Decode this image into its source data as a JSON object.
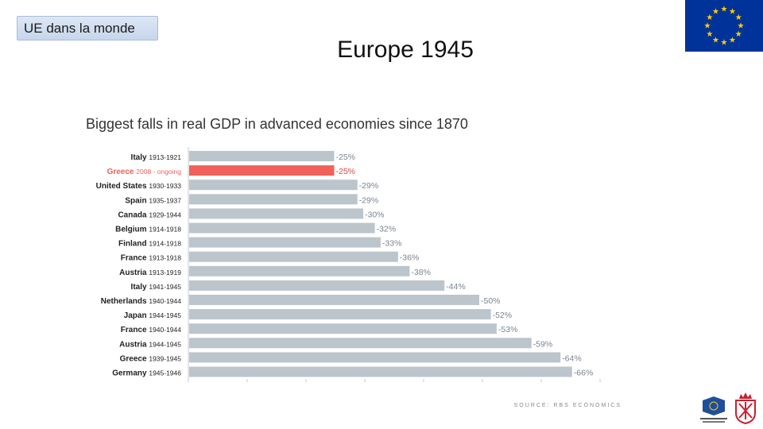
{
  "header": {
    "tag_label": "UE dans la monde",
    "slide_title": "Europe 1945"
  },
  "chart_data": {
    "type": "bar",
    "orientation": "horizontal",
    "title": "Biggest falls in real GDP in advanced economies since 1870",
    "source": "SOURCE: RBS ECONOMICS",
    "categories": [
      {
        "country": "Italy",
        "period": "1913-1921"
      },
      {
        "country": "Greece",
        "period": "2008 - ongoing"
      },
      {
        "country": "United States",
        "period": "1930-1933"
      },
      {
        "country": "Spain",
        "period": "1935-1937"
      },
      {
        "country": "Canada",
        "period": "1929-1944"
      },
      {
        "country": "Belgium",
        "period": "1914-1918"
      },
      {
        "country": "Finland",
        "period": "1914-1918"
      },
      {
        "country": "France",
        "period": "1913-1918"
      },
      {
        "country": "Austria",
        "period": "1913-1919"
      },
      {
        "country": "Italy",
        "period": "1941-1945"
      },
      {
        "country": "Netherlands",
        "period": "1940-1944"
      },
      {
        "country": "Japan",
        "period": "1944-1945"
      },
      {
        "country": "France",
        "period": "1940-1944"
      },
      {
        "country": "Austria",
        "period": "1944-1945"
      },
      {
        "country": "Greece",
        "period": "1939-1945"
      },
      {
        "country": "Germany",
        "period": "1945-1946"
      }
    ],
    "values": [
      -25,
      -25,
      -29,
      -29,
      -30,
      -32,
      -33,
      -36,
      -38,
      -44,
      -50,
      -52,
      -53,
      -59,
      -64,
      -66
    ],
    "labels": [
      "-25%",
      "-25%",
      "-29%",
      "-29%",
      "-30%",
      "-32%",
      "-33%",
      "-36%",
      "-38%",
      "-44%",
      "-50%",
      "-52%",
      "-53%",
      "-59%",
      "-64%",
      "-66%"
    ],
    "highlight_index": 1,
    "colors": {
      "bar": "#bcc4cc",
      "highlight": "#f0615a",
      "label": "#7a8591",
      "highlight_label": "#e0473f",
      "axis": "#c8c8c8"
    },
    "xlim": [
      0,
      70
    ]
  },
  "logos": {
    "flag_color": "#003399",
    "star_color": "#ffcc00",
    "crest_color": "#cc1f2e"
  }
}
